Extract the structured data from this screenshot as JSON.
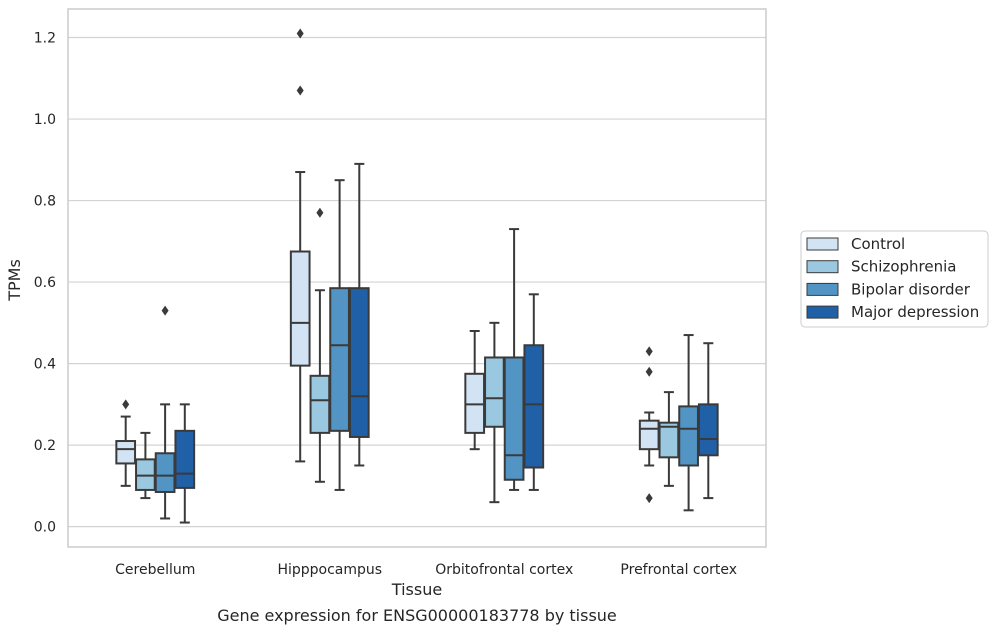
{
  "chart_data": {
    "type": "box",
    "xlabel": "Tissue",
    "ylabel": "TPMs",
    "caption": "Gene expression for ENSG00000183778 by tissue",
    "ylim": [
      -0.05,
      1.27
    ],
    "yticks": [
      "0.0",
      "0.2",
      "0.4",
      "0.6",
      "0.8",
      "1.0",
      "1.2"
    ],
    "grid": "horizontal",
    "legend_position": "right",
    "categories": [
      "Cerebellum",
      "Hipppocampus",
      "Orbitofrontal cortex",
      "Prefrontal cortex"
    ],
    "series": [
      {
        "name": "Control",
        "color": "#d2e3f3",
        "boxes": [
          {
            "low": 0.1,
            "q1": 0.155,
            "median": 0.19,
            "q3": 0.21,
            "high": 0.27,
            "outliers": [
              0.3
            ]
          },
          {
            "low": 0.16,
            "q1": 0.395,
            "median": 0.5,
            "q3": 0.675,
            "high": 0.87,
            "outliers": [
              1.21,
              1.07
            ]
          },
          {
            "low": 0.19,
            "q1": 0.23,
            "median": 0.3,
            "q3": 0.375,
            "high": 0.48,
            "outliers": []
          },
          {
            "low": 0.15,
            "q1": 0.19,
            "median": 0.24,
            "q3": 0.26,
            "high": 0.28,
            "outliers": [
              0.43,
              0.38,
              0.07
            ]
          }
        ]
      },
      {
        "name": "Schizophrenia",
        "color": "#9ac8e0",
        "boxes": [
          {
            "low": 0.07,
            "q1": 0.09,
            "median": 0.125,
            "q3": 0.165,
            "high": 0.23,
            "outliers": []
          },
          {
            "low": 0.11,
            "q1": 0.23,
            "median": 0.31,
            "q3": 0.37,
            "high": 0.58,
            "outliers": [
              0.77
            ]
          },
          {
            "low": 0.06,
            "q1": 0.245,
            "median": 0.315,
            "q3": 0.415,
            "high": 0.5,
            "outliers": []
          },
          {
            "low": 0.1,
            "q1": 0.17,
            "median": 0.245,
            "q3": 0.255,
            "high": 0.33,
            "outliers": []
          }
        ]
      },
      {
        "name": "Bipolar disorder",
        "color": "#5295c5",
        "boxes": [
          {
            "low": 0.02,
            "q1": 0.085,
            "median": 0.125,
            "q3": 0.18,
            "high": 0.3,
            "outliers": [
              0.53
            ]
          },
          {
            "low": 0.09,
            "q1": 0.235,
            "median": 0.445,
            "q3": 0.585,
            "high": 0.85,
            "outliers": []
          },
          {
            "low": 0.09,
            "q1": 0.115,
            "median": 0.175,
            "q3": 0.415,
            "high": 0.73,
            "outliers": []
          },
          {
            "low": 0.04,
            "q1": 0.15,
            "median": 0.24,
            "q3": 0.295,
            "high": 0.47,
            "outliers": []
          }
        ]
      },
      {
        "name": "Major depression",
        "color": "#2060a7",
        "boxes": [
          {
            "low": 0.01,
            "q1": 0.095,
            "median": 0.13,
            "q3": 0.235,
            "high": 0.3,
            "outliers": []
          },
          {
            "low": 0.15,
            "q1": 0.22,
            "median": 0.32,
            "q3": 0.585,
            "high": 0.89,
            "outliers": []
          },
          {
            "low": 0.09,
            "q1": 0.145,
            "median": 0.3,
            "q3": 0.445,
            "high": 0.57,
            "outliers": []
          },
          {
            "low": 0.07,
            "q1": 0.175,
            "median": 0.215,
            "q3": 0.3,
            "high": 0.45,
            "outliers": []
          }
        ]
      }
    ]
  }
}
